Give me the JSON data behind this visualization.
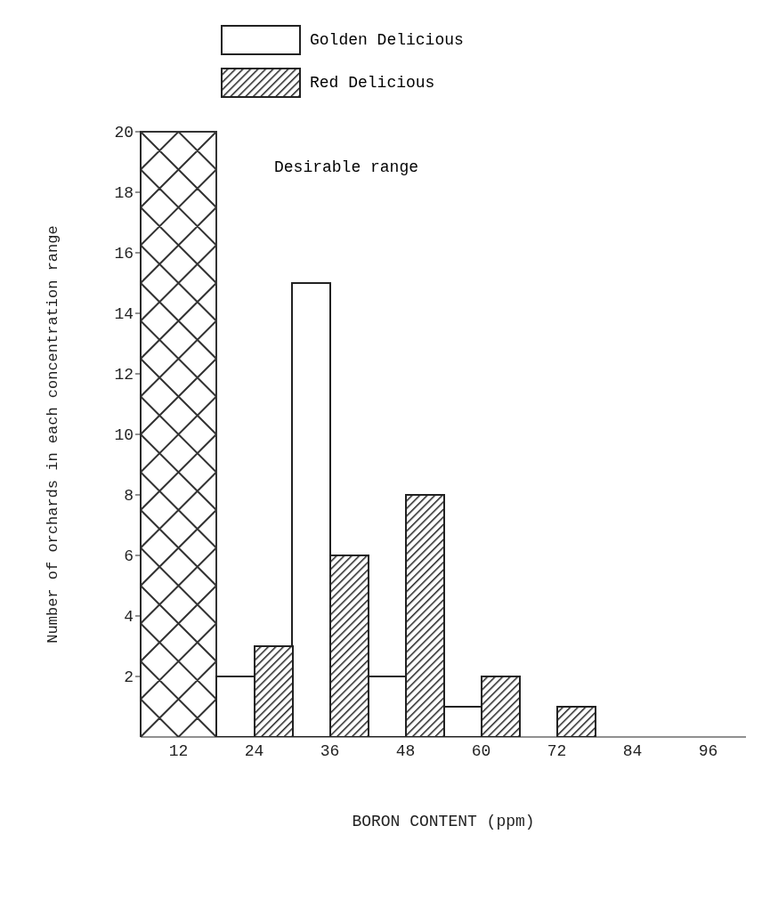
{
  "chart_data": {
    "type": "bar",
    "xlabel": "BORON CONTENT (ppm)",
    "ylabel": "Number of orchards in each concentration range",
    "categories": [
      "12",
      "24",
      "36",
      "48",
      "60",
      "72",
      "84",
      "96"
    ],
    "series": [
      {
        "name": "Golden Delicious",
        "color": "#ffffff",
        "values": [
          null,
          2,
          15,
          2,
          1,
          null,
          null,
          null
        ]
      },
      {
        "name": "Red Delicious",
        "color": "#222222",
        "values": [
          null,
          3,
          6,
          8,
          2,
          1,
          null,
          null
        ]
      }
    ],
    "ylim": [
      0,
      20
    ],
    "yticks": [
      2,
      4,
      6,
      8,
      10,
      12,
      14,
      16,
      18,
      20
    ],
    "annotations": [
      "Desirable range"
    ],
    "legend": "top left"
  }
}
